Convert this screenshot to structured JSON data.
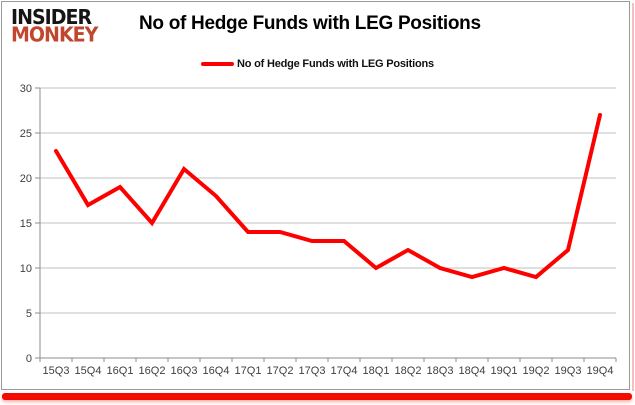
{
  "logo": {
    "line1": "INSIDER",
    "line2": "MONKEY"
  },
  "header": {
    "title": "No of Hedge Funds with LEG Positions"
  },
  "legend": {
    "label": "No of Hedge Funds with LEG Positions"
  },
  "chart_data": {
    "type": "line",
    "title": "No of Hedge Funds with LEG Positions",
    "categories": [
      "15Q3",
      "15Q4",
      "16Q1",
      "16Q2",
      "16Q3",
      "16Q4",
      "17Q1",
      "17Q2",
      "17Q3",
      "17Q4",
      "18Q1",
      "18Q2",
      "18Q3",
      "18Q4",
      "19Q1",
      "19Q2",
      "19Q3",
      "19Q4"
    ],
    "series": [
      {
        "name": "No of Hedge Funds with LEG Positions",
        "color": "#ff0000",
        "values": [
          23,
          17,
          19,
          15,
          21,
          18,
          14,
          14,
          13,
          13,
          10,
          12,
          10,
          9,
          10,
          9,
          12,
          27
        ]
      }
    ],
    "xlabel": "",
    "ylabel": "",
    "ylim": [
      0,
      30
    ],
    "ytick_step": 5,
    "yticks": [
      0,
      5,
      10,
      15,
      20,
      25,
      30
    ],
    "grid": true,
    "legend_position": "top-center"
  },
  "colors": {
    "line": "#ff0000",
    "grid": "#c0c0c0",
    "axis": "#8c8c8c",
    "tick_label": "#3f3f3f",
    "accent_bar": "#f40b00",
    "logo_red": "#c0472e",
    "frame_border": "#9a9a9a"
  }
}
